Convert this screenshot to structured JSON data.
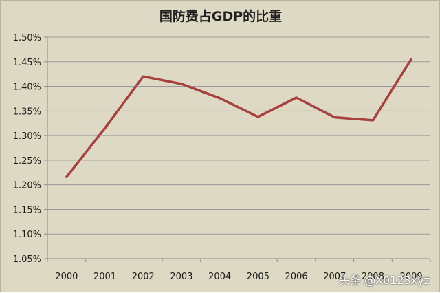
{
  "chart_data": {
    "type": "line",
    "title": "国防费占GDP的比重",
    "xlabel": "",
    "ylabel": "",
    "categories": [
      "2000",
      "2001",
      "2002",
      "2003",
      "2004",
      "2005",
      "2006",
      "2007",
      "2008",
      "2009"
    ],
    "series": [
      {
        "values": [
          1.216,
          1.315,
          1.42,
          1.405,
          1.376,
          1.338,
          1.377,
          1.337,
          1.331,
          1.455
        ]
      }
    ],
    "ylim": [
      1.05,
      1.5
    ],
    "yticks": [
      "1.05%",
      "1.10%",
      "1.15%",
      "1.20%",
      "1.25%",
      "1.30%",
      "1.35%",
      "1.40%",
      "1.45%",
      "1.50%"
    ],
    "grid": true,
    "legend": "none",
    "colors": {
      "line": "#a8403d",
      "background": "#ddd9c4",
      "grid": "#9a9a9a",
      "axis": "#8c8c8c"
    }
  },
  "watermark": "头条 @X0123xyz"
}
